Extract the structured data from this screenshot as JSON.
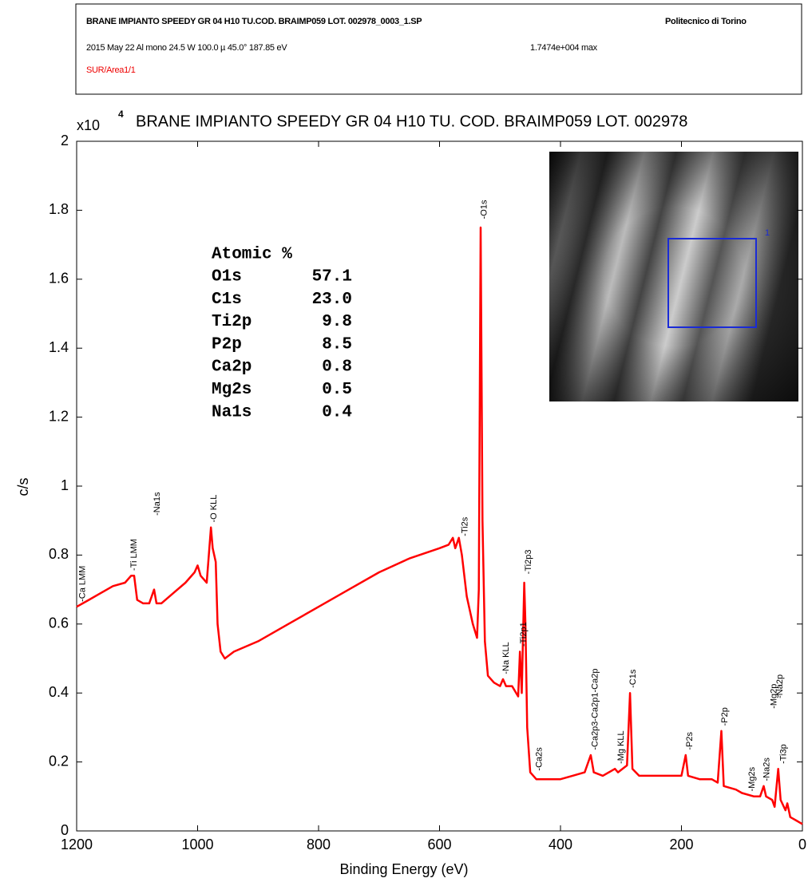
{
  "header": {
    "file": "BRANE IMPIANTO SPEEDY GR 04 H10 TU.COD. BRAIMP059 LOT. 002978_0003_1.SP",
    "institution": "Politecnico di Torino",
    "acquisition": "2015 May 22  Al mono  24.5 W  100.0 µ  45.0°  187.85 eV",
    "max": "1.7474e+004 max",
    "area": "SUR/Area1/1"
  },
  "chart_data": {
    "type": "line",
    "title": "BRANE IMPIANTO SPEEDY GR 04 H10 TU. COD. BRAIMP059 LOT. 002978",
    "y_multiplier": {
      "base": "x10",
      "exponent": "4"
    },
    "x_label": "Binding Energy (eV)",
    "y_label": "c/s",
    "xlim": [
      1200,
      0
    ],
    "xticks": [
      1200,
      1000,
      800,
      600,
      400,
      200,
      0
    ],
    "ylim": [
      0,
      2
    ],
    "yticks": [
      0,
      0.2,
      0.4,
      0.6,
      0.8,
      1,
      1.2,
      1.4,
      1.6,
      1.8,
      2
    ],
    "series": [
      {
        "color": "#ff0000",
        "x": [
          1200,
          1180,
          1160,
          1140,
          1120,
          1110,
          1105,
          1100,
          1090,
          1080,
          1072,
          1068,
          1060,
          1040,
          1020,
          1005,
          1000,
          995,
          985,
          978,
          975,
          970,
          967,
          962,
          955,
          940,
          900,
          850,
          800,
          750,
          700,
          650,
          600,
          585,
          578,
          574,
          568,
          563,
          555,
          545,
          538,
          535,
          532,
          529,
          525,
          520,
          510,
          500,
          495,
          490,
          480,
          470,
          467,
          464,
          460,
          458,
          455,
          450,
          440,
          420,
          400,
          380,
          360,
          350,
          345,
          330,
          310,
          305,
          290,
          285,
          281,
          270,
          250,
          220,
          200,
          193,
          189,
          170,
          150,
          140,
          134,
          130,
          110,
          100,
          80,
          70,
          64,
          60,
          50,
          46,
          40,
          36,
          28,
          25,
          20,
          10,
          0
        ],
        "values": [
          0.65,
          0.67,
          0.69,
          0.71,
          0.72,
          0.74,
          0.74,
          0.67,
          0.66,
          0.66,
          0.7,
          0.66,
          0.66,
          0.69,
          0.72,
          0.75,
          0.77,
          0.74,
          0.72,
          0.88,
          0.82,
          0.78,
          0.6,
          0.52,
          0.5,
          0.52,
          0.55,
          0.6,
          0.65,
          0.7,
          0.75,
          0.79,
          0.82,
          0.83,
          0.85,
          0.82,
          0.85,
          0.8,
          0.68,
          0.6,
          0.56,
          0.7,
          1.75,
          0.9,
          0.55,
          0.45,
          0.43,
          0.42,
          0.44,
          0.42,
          0.42,
          0.39,
          0.52,
          0.4,
          0.72,
          0.6,
          0.3,
          0.17,
          0.15,
          0.15,
          0.15,
          0.16,
          0.17,
          0.22,
          0.17,
          0.16,
          0.18,
          0.17,
          0.19,
          0.4,
          0.18,
          0.16,
          0.16,
          0.16,
          0.16,
          0.22,
          0.16,
          0.15,
          0.15,
          0.14,
          0.29,
          0.13,
          0.12,
          0.11,
          0.1,
          0.1,
          0.13,
          0.1,
          0.09,
          0.07,
          0.18,
          0.09,
          0.06,
          0.08,
          0.04,
          0.03,
          0.02
        ]
      }
    ],
    "annotations": [
      {
        "text": "-Ca LMM",
        "x": 1195,
        "y": 0.66
      },
      {
        "text": "-Ti LMM",
        "x": 1110,
        "y": 0.75
      },
      {
        "text": "-Na1s",
        "x": 1072,
        "y": 0.91
      },
      {
        "text": "-O KLL",
        "x": 978,
        "y": 0.89
      },
      {
        "text": "-Ti2s",
        "x": 563,
        "y": 0.85
      },
      {
        "text": "-O1s",
        "x": 531,
        "y": 1.77
      },
      {
        "text": "-Ti2p3",
        "x": 458,
        "y": 0.74
      },
      {
        "text": "-Ti2p1",
        "x": 466,
        "y": 0.53
      },
      {
        "text": "-Na KLL",
        "x": 495,
        "y": 0.45
      },
      {
        "text": "-Ca2s",
        "x": 440,
        "y": 0.17
      },
      {
        "text": "-Ca2p3-Ca2p1-Ca2p",
        "x": 348,
        "y": 0.23
      },
      {
        "text": "-Mg KLL",
        "x": 305,
        "y": 0.19
      },
      {
        "text": "-C1s",
        "x": 285,
        "y": 0.41
      },
      {
        "text": "-P2s",
        "x": 191,
        "y": 0.23
      },
      {
        "text": "-P2p",
        "x": 133,
        "y": 0.3
      },
      {
        "text": "-Mg2s",
        "x": 88,
        "y": 0.11
      },
      {
        "text": "-Na2s",
        "x": 64,
        "y": 0.14
      },
      {
        "text": "-Mg2p",
        "x": 52,
        "y": 0.35
      },
      {
        "text": "-Na2p",
        "x": 42,
        "y": 0.38
      },
      {
        "text": "-Ti3p",
        "x": 36,
        "y": 0.19
      }
    ],
    "atomic": {
      "header": "Atomic %",
      "rows": [
        [
          "O1s",
          "57.1"
        ],
        [
          "C1s",
          "23.0"
        ],
        [
          "Ti2p",
          "9.8"
        ],
        [
          "P2p",
          "8.5"
        ],
        [
          "Ca2p",
          "0.8"
        ],
        [
          "Mg2s",
          "0.5"
        ],
        [
          "Na1s",
          "0.4"
        ]
      ]
    },
    "inset_label": "1"
  }
}
